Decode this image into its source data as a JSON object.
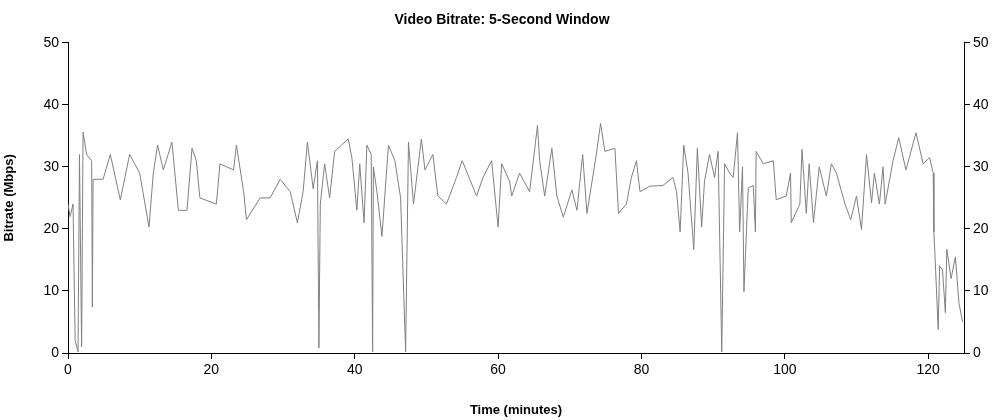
{
  "chart_data": {
    "type": "line",
    "title": "Video Bitrate: 5-Second Window",
    "xlabel": "Time (minutes)",
    "ylabel": "Bitrate (Mbps)",
    "xlim": [
      0,
      125
    ],
    "xticks": [
      0,
      20,
      40,
      60,
      80,
      100,
      120
    ],
    "ylim": [
      0,
      50
    ],
    "yticks": [
      0,
      10,
      20,
      30,
      40,
      50
    ],
    "y2lim": [
      0,
      50
    ],
    "y2ticks": [
      0,
      10,
      20,
      30,
      40,
      50
    ],
    "grid": false,
    "legend": false,
    "marker": "none",
    "series": [
      {
        "color": "#808080",
        "x": [
          0,
          0.3,
          0.7,
          1.0,
          1.4,
          1.6,
          1.9,
          2.1,
          2.6,
          3.3,
          3.4,
          3.5,
          4.9,
          5.9,
          7.3,
          8.6,
          10.0,
          11.3,
          11.9,
          12.5,
          13.3,
          14.5,
          15.4,
          16.6,
          17.3,
          17.9,
          18.4,
          20.7,
          21.2,
          23.1,
          23.5,
          24.5,
          24.9,
          26.8,
          28.2,
          29.6,
          31.0,
          32.0,
          32.8,
          33.4,
          34.2,
          34.8,
          35.0,
          35.2,
          35.8,
          36.5,
          37.2,
          39.1,
          39.6,
          40.3,
          40.7,
          41.3,
          41.7,
          42.3,
          42.5,
          42.6,
          43.1,
          43.8,
          44.7,
          45.6,
          46.4,
          47.1,
          47.5,
          48.2,
          49.3,
          49.8,
          50.9,
          51.6,
          52.8,
          54.2,
          55.0,
          57.0,
          57.9,
          59.1,
          60.0,
          60.5,
          61.6,
          61.9,
          63.0,
          64.4,
          65.5,
          65.8,
          66.5,
          67.5,
          68.2,
          69.1,
          70.3,
          71.0,
          71.8,
          72.4,
          73.7,
          74.3,
          74.9,
          76.3,
          76.8,
          77.9,
          78.6,
          79.3,
          79.8,
          81.2,
          83.0,
          84.4,
          84.9,
          85.4,
          85.9,
          86.5,
          87.3,
          87.8,
          88.4,
          88.8,
          89.5,
          90.2,
          90.7,
          91.2,
          91.6,
          92.3,
          92.8,
          93.4,
          93.7,
          94.1,
          94.3,
          94.9,
          95.6,
          95.9,
          96.0,
          97.0,
          98.4,
          98.8,
          100.2,
          100.8,
          100.9,
          102.1,
          102.4,
          103.0,
          103.4,
          104.0,
          104.8,
          105.8,
          106.5,
          107.2,
          108.4,
          109.2,
          110.0,
          110.7,
          111.4,
          112.1,
          112.5,
          113.2,
          113.7,
          114.0,
          115.1,
          115.9,
          116.9,
          118.3,
          119.3,
          120.2,
          120.7,
          120.8,
          121.0,
          121.4,
          121.6,
          122.0,
          122.4,
          122.6,
          123.2,
          123.8,
          124.3,
          124.8
        ],
        "values": [
          24,
          22,
          24,
          2,
          0.2,
          32,
          1,
          35.6,
          32,
          31,
          7.4,
          28,
          28,
          32,
          24.7,
          32,
          29,
          20.3,
          29,
          33.5,
          29.5,
          34,
          23,
          23,
          33,
          31,
          25,
          24,
          30.5,
          29.5,
          33.5,
          26,
          21.5,
          25,
          25,
          28,
          26,
          21,
          26,
          34,
          26.5,
          31,
          0.8,
          24,
          30.5,
          25,
          32.5,
          34.5,
          31.5,
          23,
          30.5,
          21,
          33.5,
          32,
          0.2,
          30,
          26,
          18.8,
          33.5,
          31,
          25,
          0.2,
          34,
          24,
          34.5,
          29.5,
          32,
          25.3,
          24,
          28.3,
          31,
          25.3,
          28.3,
          31,
          20.3,
          30.5,
          27.7,
          25.3,
          29,
          26,
          36.7,
          31,
          25.3,
          33,
          25.3,
          21.9,
          26.3,
          23,
          32,
          22.5,
          32,
          37,
          32.5,
          33,
          22.5,
          24,
          28.3,
          31,
          26,
          26.9,
          27,
          28.3,
          26,
          19.5,
          33.5,
          29,
          16.7,
          33,
          20.3,
          27.7,
          32,
          28.3,
          32.5,
          0.2,
          30.5,
          29,
          28.3,
          35.5,
          19.5,
          30,
          9.9,
          26.6,
          27,
          19.5,
          32.5,
          30.5,
          31,
          24.7,
          25.3,
          29,
          21,
          24,
          32.8,
          22.5,
          30.5,
          21,
          30,
          25.3,
          30.5,
          29,
          24,
          21.5,
          25.3,
          19.9,
          32,
          24.2,
          29,
          24,
          30,
          24,
          31,
          34.7,
          29.5,
          35.5,
          30.5,
          31.5,
          29,
          19.5,
          14.5,
          3.8,
          14,
          13.4,
          6.5,
          16.7,
          12,
          15.5,
          8,
          5
        ]
      }
    ]
  }
}
